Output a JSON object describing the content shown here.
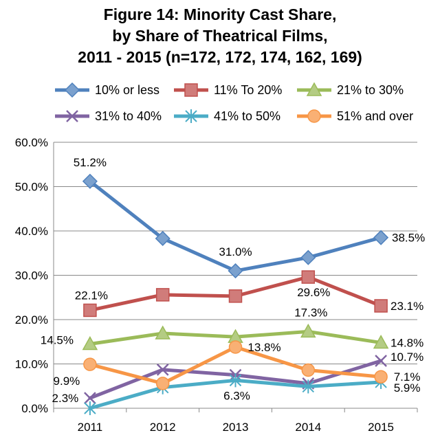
{
  "chart_data": {
    "type": "line",
    "title_lines": [
      "Figure 14:  Minority Cast Share,",
      "by Share of Theatrical Films,",
      "2011 - 2015 (n=172, 172, 174, 162, 169)"
    ],
    "xlabel": "",
    "ylabel": "",
    "categories": [
      "2011",
      "2012",
      "2013",
      "2014",
      "2015"
    ],
    "ylim": [
      0,
      60
    ],
    "y_ticks": [
      "0.0%",
      "10.0%",
      "20.0%",
      "30.0%",
      "40.0%",
      "50.0%",
      "60.0%"
    ],
    "grid": true,
    "legend_position": "top",
    "series": [
      {
        "name": "10% or less",
        "color": "#4F81BD",
        "marker": "diamond",
        "values": [
          51.2,
          38.3,
          31.0,
          34.0,
          38.5
        ],
        "labels": [
          "51.2%",
          "",
          "31.0%",
          "",
          "38.5%"
        ]
      },
      {
        "name": "11% To 20%",
        "color": "#C0504D",
        "marker": "square",
        "values": [
          22.1,
          25.6,
          25.3,
          29.6,
          23.1
        ],
        "labels": [
          "22.1%",
          "",
          "",
          "29.6%",
          "23.1%"
        ]
      },
      {
        "name": "21% to 30%",
        "color": "#9BBB59",
        "marker": "triangle",
        "values": [
          14.5,
          16.9,
          16.1,
          17.3,
          14.8
        ],
        "labels": [
          "14.5%",
          "",
          "",
          "17.3%",
          "14.8%"
        ]
      },
      {
        "name": "31% to 40%",
        "color": "#8064A2",
        "marker": "x",
        "values": [
          2.3,
          8.7,
          7.5,
          5.6,
          10.7
        ],
        "labels": [
          "2.3%",
          "",
          "",
          "",
          "10.7%"
        ]
      },
      {
        "name": "41% to 50%",
        "color": "#4BACC6",
        "marker": "star",
        "values": [
          0.0,
          4.7,
          6.3,
          4.9,
          5.9
        ],
        "labels": [
          "",
          "",
          "6.3%",
          "",
          "5.9%"
        ]
      },
      {
        "name": "51% and over",
        "color": "#F79646",
        "marker": "circle",
        "values": [
          9.9,
          5.6,
          13.8,
          8.6,
          7.1
        ],
        "labels": [
          "9.9%",
          "",
          "13.8%",
          "",
          "7.1%"
        ]
      }
    ]
  }
}
